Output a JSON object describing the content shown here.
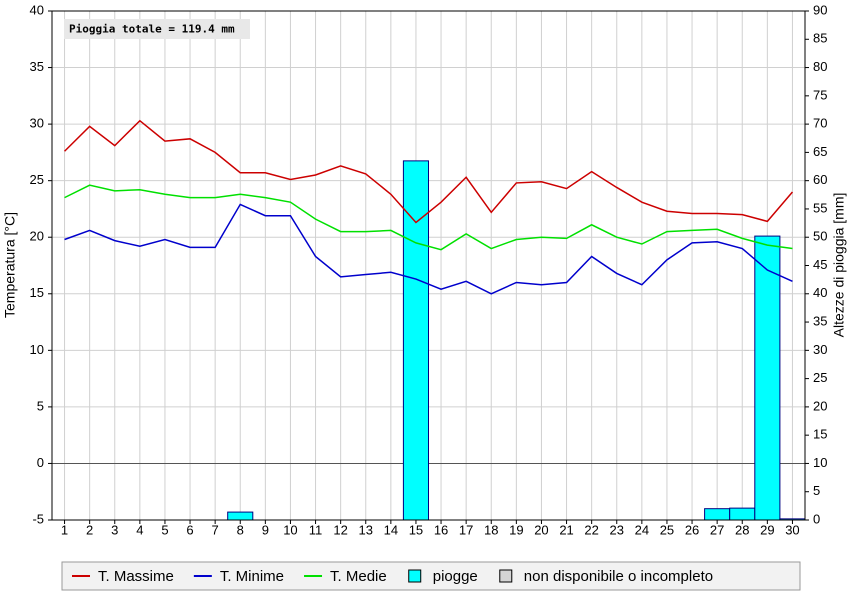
{
  "chart_data": {
    "type": "line",
    "annotation": "Pioggia totale = 119.4 mm",
    "ylabel": "Temperatura [°C]",
    "y2label": "Altezze di pioggia [mm]",
    "categories": [
      "1",
      "2",
      "3",
      "4",
      "5",
      "6",
      "7",
      "8",
      "9",
      "10",
      "11",
      "12",
      "13",
      "14",
      "15",
      "16",
      "17",
      "18",
      "19",
      "20",
      "21",
      "22",
      "23",
      "24",
      "25",
      "26",
      "27",
      "28",
      "29",
      "30"
    ],
    "series": [
      {
        "name": "T. Massime",
        "color": "#cc0000",
        "values": [
          27.6,
          29.8,
          28.1,
          30.3,
          28.5,
          28.7,
          27.5,
          25.7,
          25.7,
          25.1,
          25.5,
          26.3,
          25.6,
          23.8,
          21.3,
          23.1,
          25.3,
          22.2,
          24.8,
          24.9,
          24.3,
          25.8,
          24.4,
          23.1,
          22.3,
          22.1,
          22.1,
          22.0,
          21.4,
          24.0
        ]
      },
      {
        "name": "T. Minime",
        "color": "#0000cc",
        "values": [
          19.8,
          20.6,
          19.7,
          19.2,
          19.8,
          19.1,
          19.1,
          22.9,
          21.9,
          21.9,
          18.3,
          16.5,
          16.7,
          16.9,
          16.3,
          15.4,
          16.1,
          15.0,
          16.0,
          15.8,
          16.0,
          18.3,
          16.8,
          15.8,
          18.0,
          19.5,
          19.6,
          19.0,
          17.1,
          16.1
        ]
      },
      {
        "name": "T. Medie",
        "color": "#00e000",
        "values": [
          23.5,
          24.6,
          24.1,
          24.2,
          23.8,
          23.5,
          23.5,
          23.8,
          23.5,
          23.1,
          21.6,
          20.5,
          20.5,
          20.6,
          19.5,
          18.9,
          20.3,
          19.0,
          19.8,
          20.0,
          19.9,
          21.1,
          20.0,
          19.4,
          20.5,
          20.6,
          20.7,
          19.9,
          19.3,
          19.0
        ]
      },
      {
        "name": "piogge",
        "color": "#00ffff",
        "type": "bar",
        "axis": "y2",
        "values": [
          0,
          0,
          0,
          0,
          0,
          0,
          0,
          1.4,
          0,
          0,
          0,
          0,
          0,
          0,
          63.5,
          0,
          0,
          0,
          0,
          0,
          0,
          0,
          0,
          0,
          0,
          0,
          2.0,
          2.1,
          50.2,
          0.2
        ]
      }
    ],
    "legend_extra": [
      {
        "name": "non disponibile o incompleto",
        "color": "#d4d4d4"
      }
    ],
    "legend": "bottom",
    "ylim": [
      -5,
      40
    ],
    "yticks": [
      -5,
      0,
      5,
      10,
      15,
      20,
      25,
      30,
      35,
      40
    ],
    "y2lim": [
      0,
      90
    ],
    "y2ticks": [
      0,
      5,
      10,
      15,
      20,
      25,
      30,
      35,
      40,
      45,
      50,
      55,
      60,
      65,
      70,
      75,
      80,
      85,
      90
    ],
    "grid": true
  }
}
